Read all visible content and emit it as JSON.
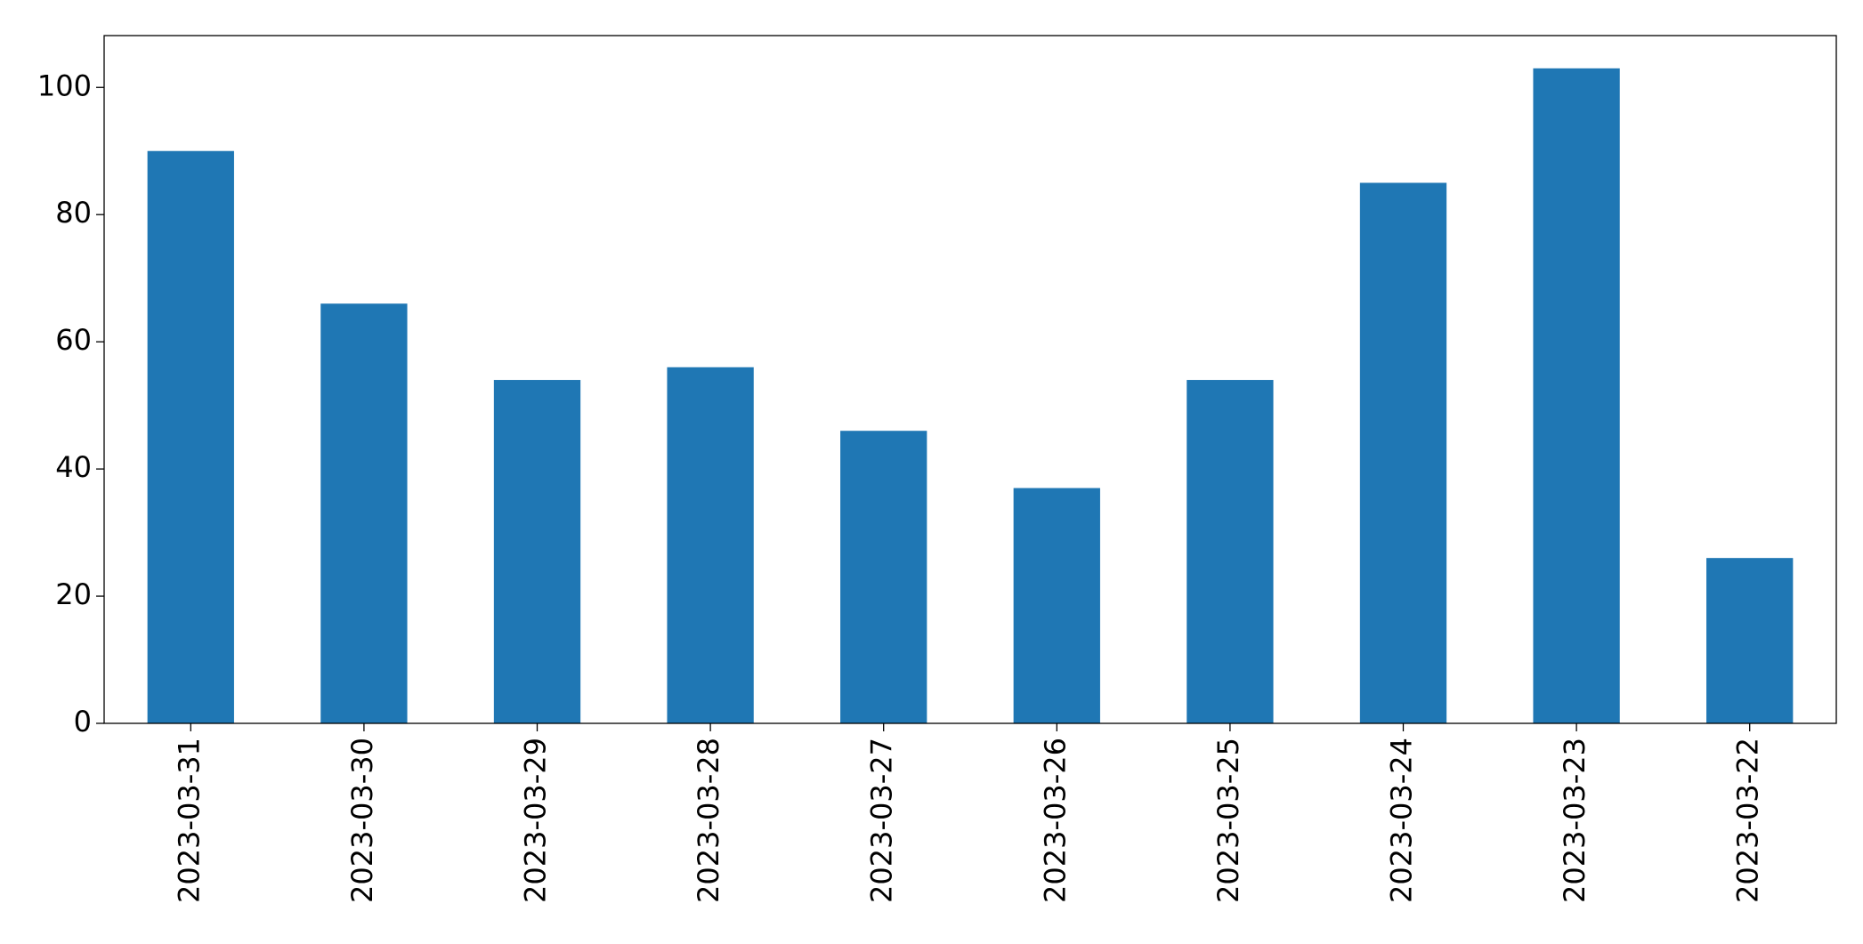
{
  "chart_data": {
    "type": "bar",
    "categories": [
      "2023-03-31",
      "2023-03-30",
      "2023-03-29",
      "2023-03-28",
      "2023-03-27",
      "2023-03-26",
      "2023-03-25",
      "2023-03-24",
      "2023-03-23",
      "2023-03-22"
    ],
    "values": [
      90,
      66,
      54,
      56,
      46,
      37,
      54,
      85,
      103,
      26
    ],
    "color": "#1f77b4",
    "ylim": [
      0,
      108.15
    ],
    "yticks": [
      0,
      20,
      40,
      60,
      80,
      100
    ],
    "grid": false
  }
}
